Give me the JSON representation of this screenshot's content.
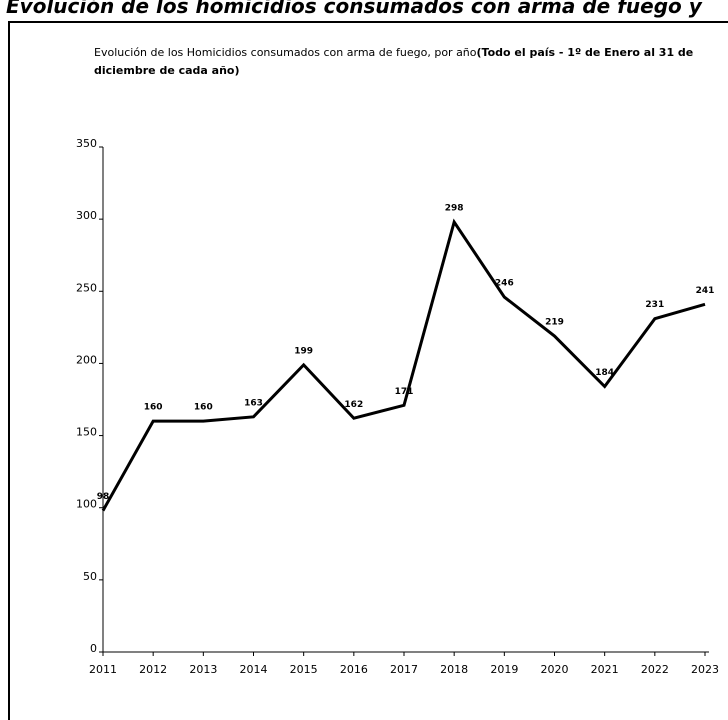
{
  "heading": "Evolución de los homicidios consumados con arma de fuego y",
  "chart_data": {
    "type": "line",
    "title": [
      "Evolución de los Homicidios consumados con arma de fuego, por año",
      "(Todo el país - 1º de Enero al 31 de diciembre de cada año)"
    ],
    "categories": [
      "2011",
      "2012",
      "2013",
      "2014",
      "2015",
      "2016",
      "2017",
      "2018",
      "2019",
      "2020",
      "2021",
      "2022",
      "2023"
    ],
    "values": [
      98,
      160,
      160,
      163,
      199,
      162,
      171,
      298,
      246,
      219,
      184,
      231,
      241
    ],
    "color": "#000000",
    "ylim": [
      0,
      350
    ],
    "yticks": [
      0,
      50,
      100,
      150,
      200,
      250,
      300,
      350
    ],
    "grid": false
  }
}
